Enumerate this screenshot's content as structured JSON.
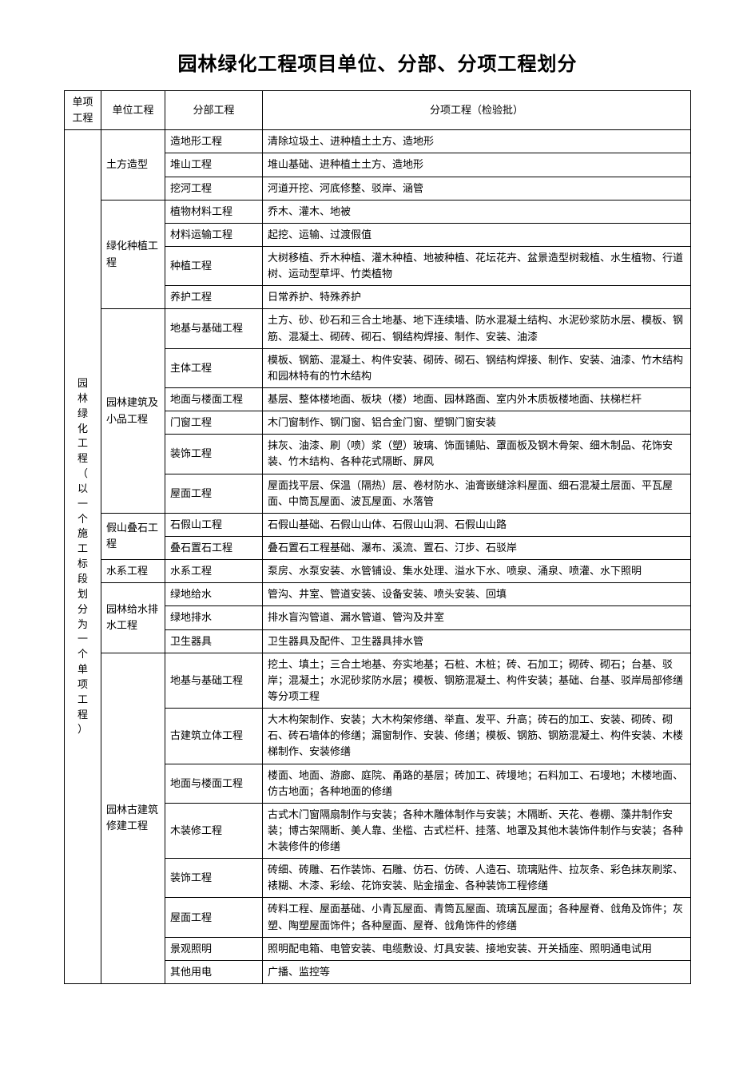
{
  "title": "园林绿化工程项目单位、分部、分项工程划分",
  "headers": {
    "c1": "单项工程",
    "c2": "单位工程",
    "c3": "分部工程",
    "c4": "分项工程（检验批）"
  },
  "col1": "园林绿化工程（以一个施工标段划分为一个单项工程）",
  "groups": [
    {
      "unit": "土方造型",
      "rows": [
        {
          "sub": "造地形工程",
          "items": "清除垃圾土、进种植土土方、造地形"
        },
        {
          "sub": "堆山工程",
          "items": "堆山基础、进种植土土方、造地形"
        },
        {
          "sub": "挖河工程",
          "items": "河道开挖、河底修整、驳岸、涵管"
        }
      ]
    },
    {
      "unit": "绿化种植工程",
      "rows": [
        {
          "sub": "植物材料工程",
          "items": "乔木、灌木、地被"
        },
        {
          "sub": "材料运输工程",
          "items": "起挖、运输、过渡假值"
        },
        {
          "sub": "种植工程",
          "items": "大树移植、乔木种植、灌木种植、地被种植、花坛花卉、盆景造型树栽植、水生植物、行道树、运动型草坪、竹类植物"
        },
        {
          "sub": "养护工程",
          "items": "日常养护、特殊养护"
        }
      ]
    },
    {
      "unit": "园林建筑及小品工程",
      "rows": [
        {
          "sub": "地基与基础工程",
          "items": "土方、砂、砂石和三合土地基、地下连续墙、防水混凝土结构、水泥砂浆防水层、模板、钢筋、混凝土、砌砖、砌石、钢结构焊接、制作、安装、油漆"
        },
        {
          "sub": "主体工程",
          "items": "模板、钢筋、混凝土、构件安装、砌砖、砌石、钢结构焊接、制作、安装、油漆、竹木结构和园林特有的竹木结构"
        },
        {
          "sub": "地面与楼面工程",
          "items": "基层、整体楼地面、板块（楼）地面、园林路面、室内外木质板楼地面、扶梯栏杆"
        },
        {
          "sub": "门窗工程",
          "items": "木门窗制作、钢门窗、铝合金门窗、塑钢门窗安装"
        },
        {
          "sub": "装饰工程",
          "items": "抹灰、油漆、刷（喷）浆（塑）玻璃、饰面铺贴、罩面板及钢木骨架、细木制品、花饰安装、竹木结构、各种花式隔断、屏风"
        },
        {
          "sub": "屋面工程",
          "items": "屋面找平层、保温（隔热）层、卷材防水、油膏嵌缝涂料屋面、细石混凝土层面、平瓦屋面、中筒瓦屋面、波瓦屋面、水落管"
        }
      ]
    },
    {
      "unit": "假山叠石工程",
      "rows": [
        {
          "sub": "石假山工程",
          "items": "石假山基础、石假山山体、石假山山洞、石假山山路"
        },
        {
          "sub": "叠石置石工程",
          "items": "叠石置石工程基础、瀑布、溪流、置石、汀步、石驳岸"
        }
      ]
    },
    {
      "unit": "水系工程",
      "rows": [
        {
          "sub": "水系工程",
          "items": "泵房、水泵安装、水管铺设、集水处理、溢水下水、喷泉、涌泉、喷灌、水下照明"
        }
      ]
    },
    {
      "unit": "园林给水排水工程",
      "rows": [
        {
          "sub": "绿地给水",
          "items": "管沟、井室、管道安装、设备安装、喷头安装、回填"
        },
        {
          "sub": "绿地排水",
          "items": "排水盲沟管道、漏水管道、管沟及井室"
        },
        {
          "sub": "卫生器具",
          "items": "卫生器具及配件、卫生器具排水管"
        }
      ]
    },
    {
      "unit": "园林古建筑修建工程",
      "rows": [
        {
          "sub": "地基与基础工程",
          "items": "挖土、填土；三合土地基、夯实地基；石桩、木桩；砖、石加工；砌砖、砌石；台基、驳岸；混凝土；水泥砂浆防水层；模板、钢筋混凝土、构件安装；基础、台基、驳岸局部修缮等分项工程"
        },
        {
          "sub": "古建筑立体工程",
          "items": "大木构架制作、安装；大木构架修缮、举直、发平、升高；砖石的加工、安装、砌砖、砌石、砖石墙体的修缮；漏窗制作、安装、修缮；模板、钢筋、钢筋混凝土、构件安装、木楼梯制作、安装修缮"
        },
        {
          "sub": "地面与楼面工程",
          "items": "楼面、地面、游廊、庭院、甬路的基层；砖加工、砖墁地；石料加工、石墁地；木楼地面、仿古地面；各种地面的修缮"
        },
        {
          "sub": "木装修工程",
          "items": "古式木门窗隔扇制作与安装；各种木雕体制作与安装；木隔断、天花、卷棚、藻井制作安装；博古架隔断、美人靠、坐槛、古式栏杆、挂落、地罩及其他木装饰件制作与安装；各种木装修件的修缮"
        },
        {
          "sub": "装饰工程",
          "items": "砖细、砖雕、石作装饰、石雕、仿石、仿砖、人造石、琉璃贴件、拉灰条、彩色抹灰刷浆、裱糊、木漆、彩绘、花饰安装、贴金描金、各种装饰工程修缮"
        },
        {
          "sub": "屋面工程",
          "items": "砖料工程、屋面基础、小青瓦屋面、青筒瓦屋面、琉璃瓦屋面；各种屋脊、戗角及饰件；灰塑、陶塑屋面饰件；各种屋面、屋脊、戗角饰件的修缮"
        },
        {
          "sub": "景观照明",
          "items": "照明配电箱、电管安装、电缆敷设、灯具安装、接地安装、开关插座、照明通电试用"
        },
        {
          "sub": "其他用电",
          "items": "广播、监控等"
        }
      ]
    }
  ]
}
